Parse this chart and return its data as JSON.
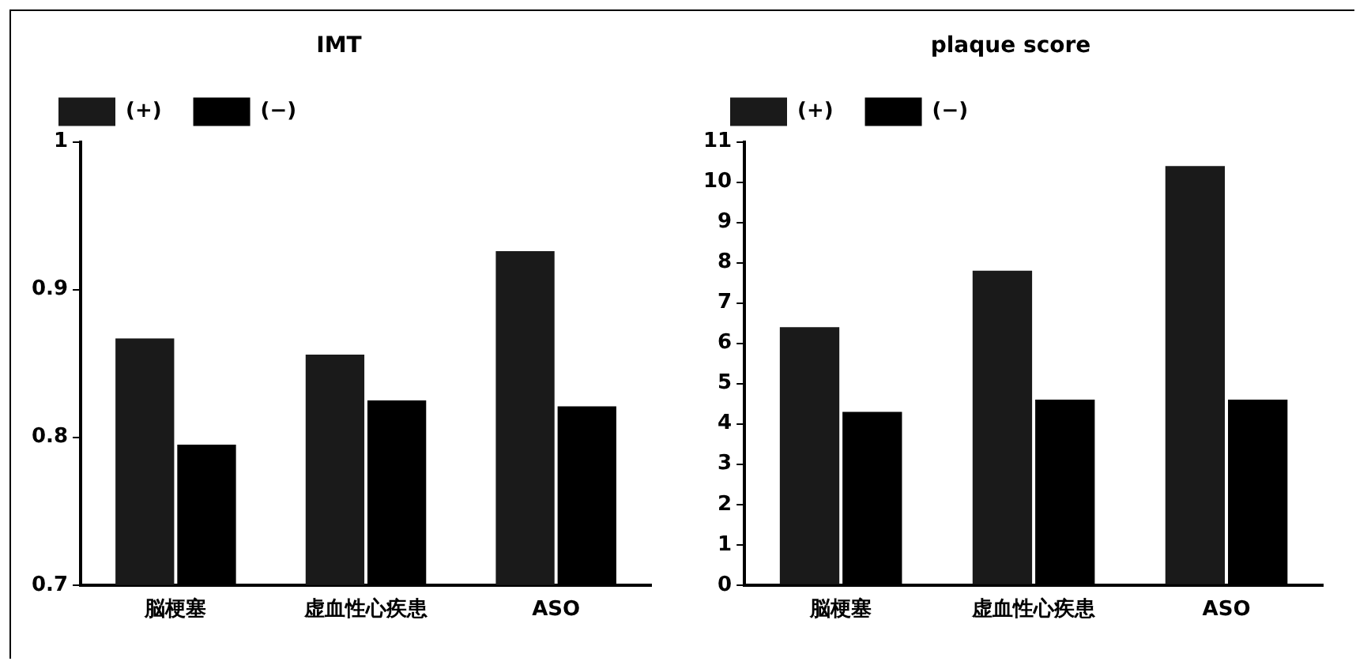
{
  "chart_data": [
    {
      "type": "bar",
      "title": "IMT",
      "categories": [
        "脳梗塞",
        "虚血性心疾患",
        "ASO"
      ],
      "series": [
        {
          "name": "(+)",
          "color": "#1a1a1a",
          "values": [
            0.867,
            0.856,
            0.926
          ]
        },
        {
          "name": "(−)",
          "color": "#000000",
          "values": [
            0.795,
            0.825,
            0.821
          ]
        }
      ],
      "ylim": [
        0.7,
        1
      ],
      "yticks": [
        0.7,
        0.8,
        0.9,
        1
      ],
      "grid": false,
      "legend": "top left"
    },
    {
      "type": "bar",
      "title": "plaque score",
      "categories": [
        "脳梗塞",
        "虚血性心疾患",
        "ASO"
      ],
      "series": [
        {
          "name": "(+)",
          "color": "#1a1a1a",
          "values": [
            6.4,
            7.8,
            10.4
          ]
        },
        {
          "name": "(−)",
          "color": "#000000",
          "values": [
            4.3,
            4.6,
            4.6
          ]
        }
      ],
      "ylim": [
        0,
        11
      ],
      "yticks": [
        0,
        1,
        2,
        3,
        4,
        5,
        6,
        7,
        8,
        9,
        10,
        11
      ],
      "grid": false,
      "legend": "top left"
    }
  ]
}
